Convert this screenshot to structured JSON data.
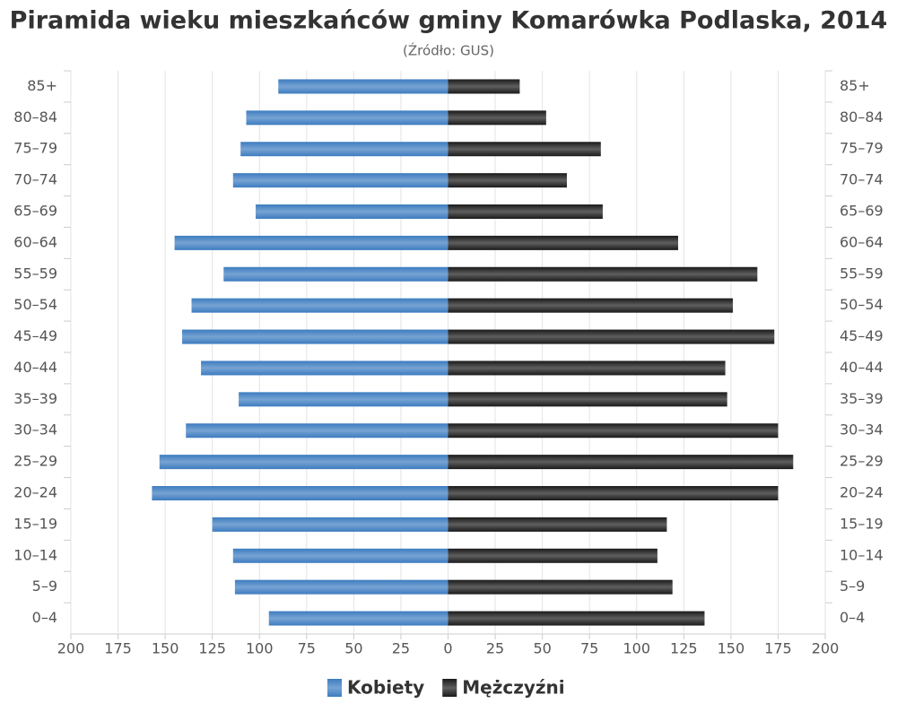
{
  "chart_data": {
    "type": "pyramid",
    "title": "Piramida wieku mieszkańców gminy Komarówka Podlaska, 2014",
    "subtitle": "(Źródło: GUS)",
    "categories": [
      "85+",
      "80–84",
      "75–79",
      "70–74",
      "65–69",
      "60–64",
      "55–59",
      "50–54",
      "45–49",
      "40–44",
      "35–39",
      "30–34",
      "25–29",
      "20–24",
      "15–19",
      "10–14",
      "5–9",
      "0–4"
    ],
    "series": [
      {
        "name": "Kobiety",
        "color": "#3d7cc0",
        "side": "left",
        "values": [
          90,
          107,
          110,
          114,
          102,
          145,
          119,
          136,
          141,
          131,
          111,
          139,
          153,
          157,
          125,
          114,
          113,
          95
        ]
      },
      {
        "name": "Mężczyźni",
        "color": "#1a1a1a",
        "side": "right",
        "values": [
          38,
          52,
          81,
          63,
          82,
          122,
          164,
          151,
          173,
          147,
          148,
          175,
          183,
          175,
          116,
          111,
          119,
          136
        ]
      }
    ],
    "xlim": [
      0,
      200
    ],
    "xticks": [
      0,
      25,
      50,
      75,
      100,
      125,
      150,
      175,
      200
    ],
    "grid": true,
    "legend": "bottom"
  }
}
